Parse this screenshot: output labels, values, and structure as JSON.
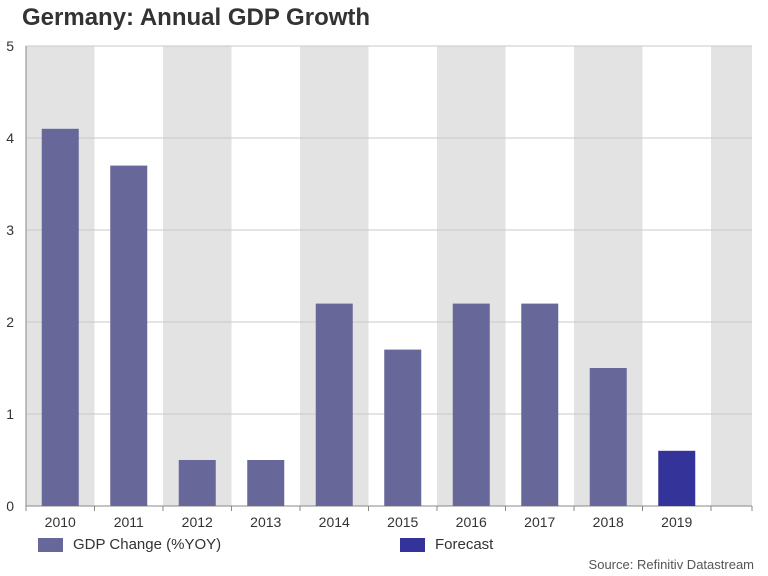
{
  "header": {
    "title": "Germany: Annual GDP Growth"
  },
  "chart_data": {
    "type": "bar",
    "title": "Germany: Annual GDP Growth",
    "xlabel": "",
    "ylabel": "",
    "categories": [
      "2010",
      "2011",
      "2012",
      "2013",
      "2014",
      "2015",
      "2016",
      "2017",
      "2018",
      "2019"
    ],
    "series": [
      {
        "name": "GDP Change (%YOY)",
        "values": [
          4.1,
          3.7,
          0.5,
          0.5,
          2.2,
          1.7,
          2.2,
          2.2,
          1.5,
          null
        ],
        "color": "#676799"
      },
      {
        "name": "Forecast",
        "values": [
          null,
          null,
          null,
          null,
          null,
          null,
          null,
          null,
          null,
          0.6
        ],
        "color": "#333399"
      }
    ],
    "ylim": [
      0,
      5
    ],
    "yticks": [
      "0",
      "1",
      "2",
      "3",
      "4",
      "5"
    ],
    "grid": true,
    "legend": "bottom"
  },
  "legend": {
    "items": [
      {
        "label": "GDP Change (%YOY)",
        "color": "#676799"
      },
      {
        "label": "Forecast",
        "color": "#333399"
      }
    ]
  },
  "footer": {
    "source": "Source: Refinitiv Datastream"
  }
}
